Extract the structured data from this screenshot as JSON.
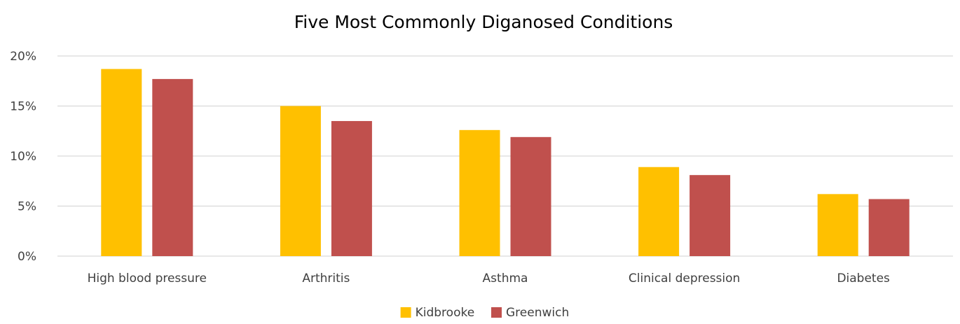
{
  "chart_data": {
    "type": "bar",
    "title": "Five Most Commonly Diganosed Conditions",
    "xlabel": "",
    "ylabel": "",
    "categories": [
      "High blood pressure",
      "Arthritis",
      "Asthma",
      "Clinical depression",
      "Diabetes"
    ],
    "series": [
      {
        "name": "Kidbrooke",
        "color": "#FFC000",
        "values": [
          18.7,
          15.0,
          12.6,
          8.9,
          6.2
        ]
      },
      {
        "name": "Greenwich",
        "color": "#C0504D",
        "values": [
          17.7,
          13.5,
          11.9,
          8.1,
          5.7
        ]
      }
    ],
    "ylim": [
      0,
      20
    ],
    "yticks": [
      0,
      5,
      10,
      15,
      20
    ],
    "ytick_labels": [
      "0%",
      "5%",
      "10%",
      "15%",
      "20%"
    ],
    "grid": true,
    "gridline_color": "#D9D9D9",
    "legend_position": "bottom"
  }
}
